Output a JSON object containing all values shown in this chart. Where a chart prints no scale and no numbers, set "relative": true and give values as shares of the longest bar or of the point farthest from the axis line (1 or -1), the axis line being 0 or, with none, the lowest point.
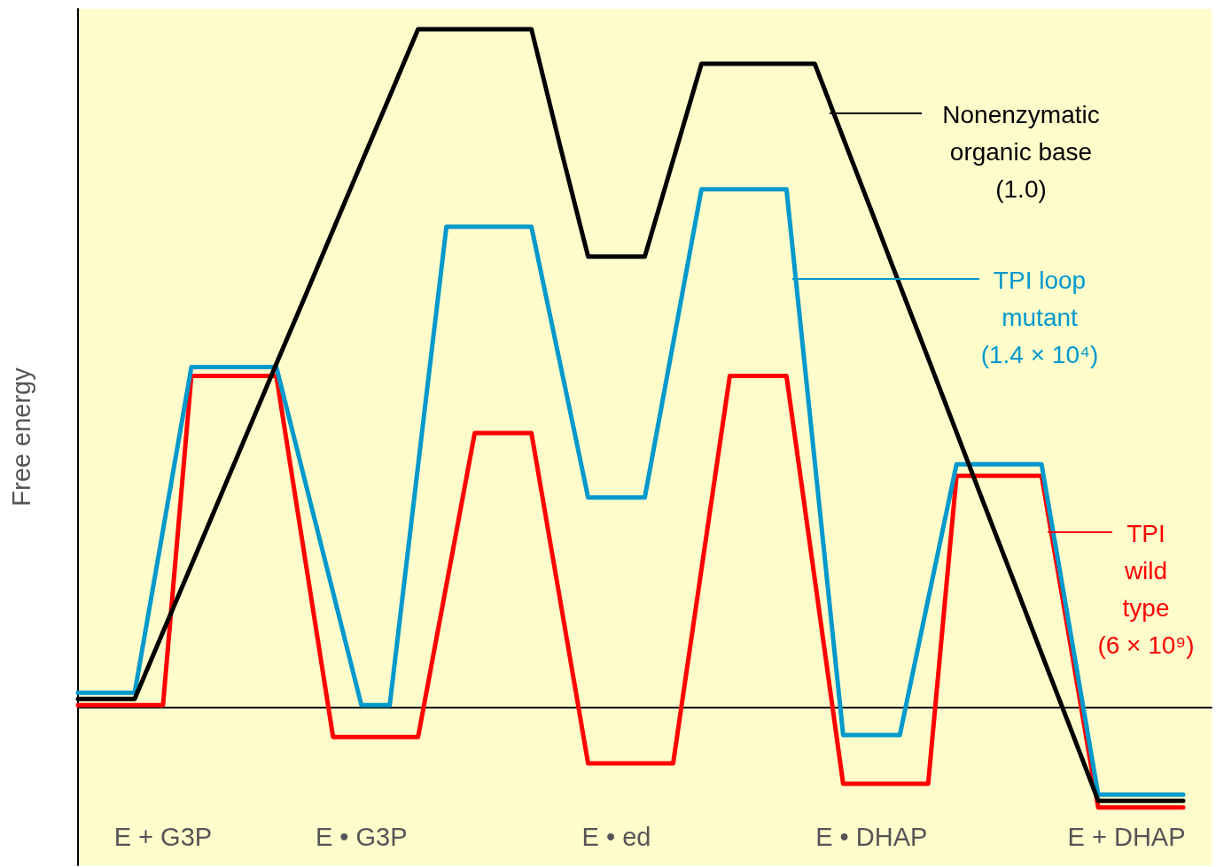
{
  "chart_data": {
    "type": "line",
    "relative": true,
    "ylabel": "Free energy",
    "categories": [
      null,
      null,
      null,
      "E + G3P",
      null,
      null,
      null,
      null,
      null,
      null,
      "E • G3P",
      null,
      null,
      null,
      null,
      null,
      null,
      null,
      null,
      "E • ed",
      null,
      null,
      null,
      null,
      null,
      null,
      null,
      null,
      "E • DHAP",
      null,
      null,
      null,
      null,
      null,
      null,
      null,
      null,
      "E + DHAP",
      null,
      null,
      null
    ],
    "marker": "none",
    "line_style": "solid",
    "grid": false,
    "legend": "right",
    "series": [
      {
        "name": "Nonenzymatic organic base (1.0)",
        "color": "#000000",
        "values": [
          0.013,
          0.013,
          0.013,
          0.112,
          0.21,
          0.309,
          0.408,
          0.507,
          0.605,
          0.704,
          0.803,
          0.901,
          1,
          1,
          1,
          1,
          1,
          0.83,
          0.665,
          0.665,
          0.665,
          0.807,
          0.949,
          0.949,
          0.949,
          0.949,
          0.949,
          0.84,
          0.732,
          0.623,
          0.515,
          0.406,
          0.297,
          0.189,
          0.08,
          -0.028,
          -0.137,
          -0.137,
          -0.137,
          -0.137,
          null
        ]
      },
      {
        "name": "TPI loop mutant (1.4 × 10⁴)",
        "color": "#0099cc",
        "values": [
          0.022,
          0.022,
          0.022,
          0.262,
          0.502,
          0.502,
          0.502,
          0.502,
          0.336,
          0.17,
          0.004,
          0.004,
          0.357,
          0.709,
          0.709,
          0.709,
          0.709,
          0.51,
          0.31,
          0.31,
          0.31,
          0.537,
          0.764,
          0.764,
          0.764,
          0.764,
          0.362,
          -0.04,
          -0.04,
          -0.04,
          0.16,
          0.359,
          0.359,
          0.359,
          0.359,
          0.116,
          -0.128,
          -0.128,
          -0.128,
          -0.128,
          null
        ]
      },
      {
        "name": "TPI wild type (6 × 10⁹)",
        "color": "#ff0000",
        "values": [
          0.004,
          0.004,
          0.004,
          0.004,
          0.489,
          0.489,
          0.489,
          0.489,
          0.223,
          -0.043,
          -0.043,
          -0.043,
          -0.043,
          0.181,
          0.405,
          0.405,
          0.405,
          0.162,
          -0.082,
          -0.082,
          -0.082,
          -0.082,
          0.204,
          0.489,
          0.489,
          0.489,
          0.189,
          -0.112,
          -0.112,
          -0.112,
          -0.112,
          0.342,
          0.342,
          0.342,
          0.342,
          0.098,
          -0.147,
          -0.147,
          -0.147,
          -0.147,
          null
        ]
      }
    ]
  }
}
